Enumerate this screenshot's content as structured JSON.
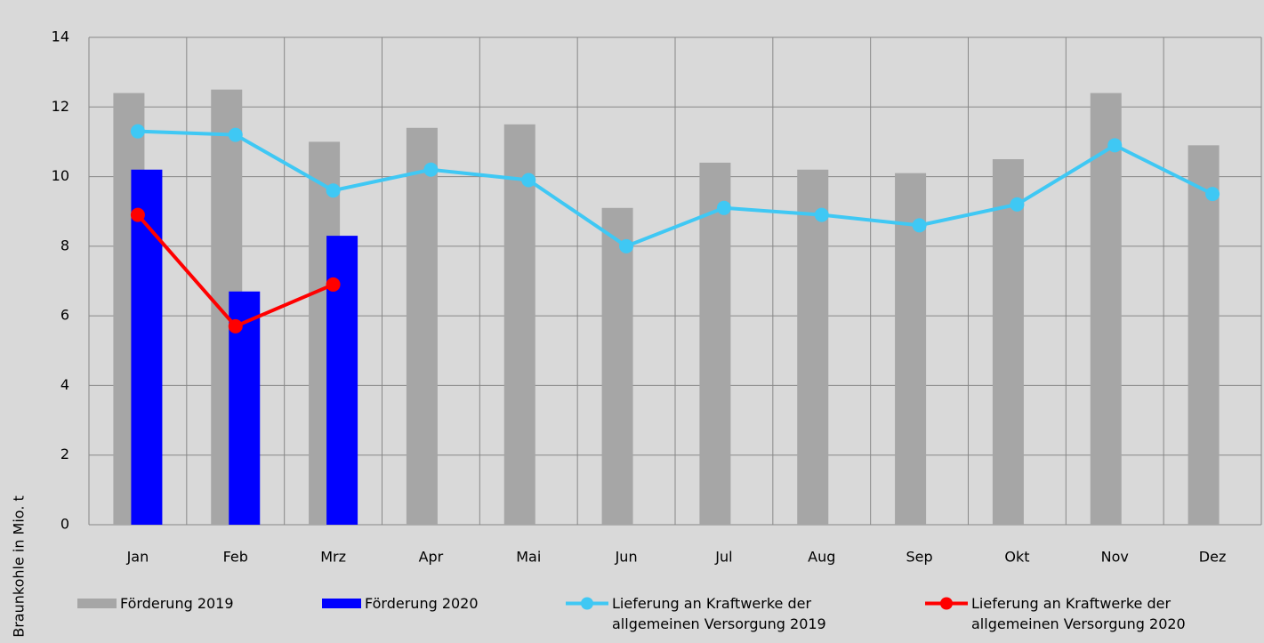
{
  "chart_data": {
    "type": "bar",
    "y_label": "Braunkohle in Mio. t",
    "categories": [
      "Jan",
      "Feb",
      "Mrz",
      "Apr",
      "Mai",
      "Jun",
      "Jul",
      "Aug",
      "Sep",
      "Okt",
      "Nov",
      "Dez"
    ],
    "series": [
      {
        "name": "Förderung 2019",
        "type": "bar",
        "color": "#a6a6a6",
        "values": [
          12.4,
          12.5,
          11.0,
          11.4,
          11.5,
          9.1,
          10.4,
          10.2,
          10.1,
          10.5,
          12.4,
          10.9
        ]
      },
      {
        "name": "Förderung 2020",
        "type": "bar",
        "color": "#0000ff",
        "values": [
          10.2,
          6.7,
          8.3,
          null,
          null,
          null,
          null,
          null,
          null,
          null,
          null,
          null
        ]
      },
      {
        "name": "Lieferung an Kraftwerke der allgemeinen Versorgung 2019",
        "type": "line",
        "color": "#3fc8f4",
        "values": [
          11.3,
          11.2,
          9.6,
          10.2,
          9.9,
          8.0,
          9.1,
          8.9,
          8.6,
          9.2,
          10.9,
          9.5
        ]
      },
      {
        "name": "Lieferung an Kraftwerke der allgemeinen Versorgung 2020",
        "type": "line",
        "color": "#ff0000",
        "values": [
          8.9,
          5.7,
          6.9,
          null,
          null,
          null,
          null,
          null,
          null,
          null,
          null,
          null
        ]
      }
    ],
    "ylim": [
      0,
      14
    ],
    "yticks": [
      0,
      2,
      4,
      6,
      8,
      10,
      12,
      14
    ],
    "grid": true
  }
}
